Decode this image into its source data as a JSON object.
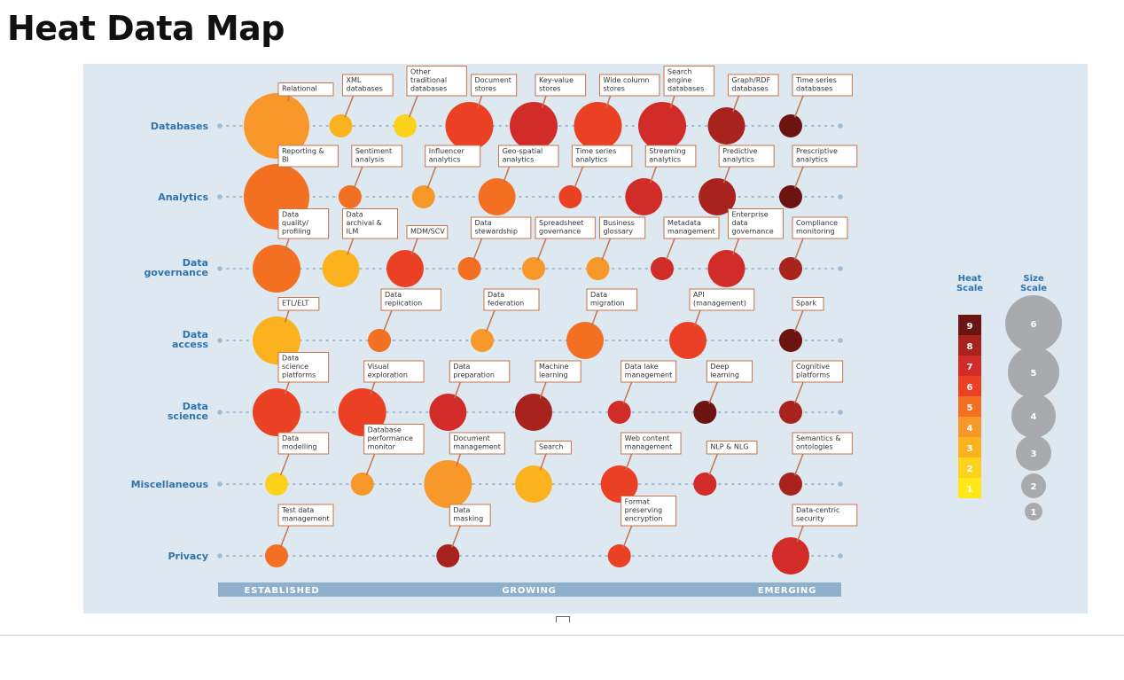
{
  "title": "Heat Data Map",
  "colors": {
    "heat": {
      "1": "#ffe816",
      "2": "#fcd21c",
      "3": "#fbb21e",
      "4": "#f8982a",
      "5": "#f36f22",
      "6": "#ea4024",
      "7": "#d22c28",
      "8": "#a8221e",
      "9": "#6b1412"
    },
    "size_bubble": "#a9aaad",
    "row_label": "#2f74ae",
    "axis_bar": "#8eb0cc",
    "dot": "#9ebcd5"
  },
  "rows": [
    {
      "label": "Databases",
      "items": [
        {
          "label": "Relational",
          "heat": 4,
          "size": 6
        },
        {
          "label": "XML databases",
          "heat": 3,
          "size": 2
        },
        {
          "label": "Other traditional databases",
          "heat": 2,
          "size": 2
        },
        {
          "label": "Document stores",
          "heat": 6,
          "size": 5
        },
        {
          "label": "Key-value stores",
          "heat": 7,
          "size": 5
        },
        {
          "label": "Wide column stores",
          "heat": 6,
          "size": 5
        },
        {
          "label": "Search engine databases",
          "heat": 7,
          "size": 5
        },
        {
          "label": "Graph/RDF databases",
          "heat": 8,
          "size": 4
        },
        {
          "label": "Time series databases",
          "heat": 9,
          "size": 2
        }
      ]
    },
    {
      "label": "Analytics",
      "items": [
        {
          "label": "Reporting & BI",
          "heat": 5,
          "size": 6
        },
        {
          "label": "Sentiment analysis",
          "heat": 5,
          "size": 2
        },
        {
          "label": "Influencer analytics",
          "heat": 4,
          "size": 2
        },
        {
          "label": "Geo-spatial analytics",
          "heat": 5,
          "size": 4
        },
        {
          "label": "Time series analytics",
          "heat": 6,
          "size": 2
        },
        {
          "label": "Streaming analytics",
          "heat": 7,
          "size": 4
        },
        {
          "label": "Predictive analytics",
          "heat": 8,
          "size": 4
        },
        {
          "label": "Prescriptive analytics",
          "heat": 9,
          "size": 2
        }
      ]
    },
    {
      "label": "Data governance",
      "items": [
        {
          "label": "Data quality/ profiling",
          "heat": 5,
          "size": 5
        },
        {
          "label": "Data archival & ILM",
          "heat": 3,
          "size": 4
        },
        {
          "label": "MDM/SCV",
          "heat": 6,
          "size": 4
        },
        {
          "label": "Data stewardship",
          "heat": 5,
          "size": 2
        },
        {
          "label": "Spreadsheet governance",
          "heat": 4,
          "size": 2
        },
        {
          "label": "Business glossary",
          "heat": 4,
          "size": 2
        },
        {
          "label": "Metadata management",
          "heat": 7,
          "size": 2
        },
        {
          "label": "Enterprise data governance",
          "heat": 7,
          "size": 4
        },
        {
          "label": "Compliance monitoring",
          "heat": 8,
          "size": 2
        }
      ]
    },
    {
      "label": "Data access",
      "items": [
        {
          "label": "ETL/ELT",
          "heat": 3,
          "size": 5
        },
        {
          "label": "Data replication",
          "heat": 5,
          "size": 2
        },
        {
          "label": "Data federation",
          "heat": 4,
          "size": 2
        },
        {
          "label": "Data migration",
          "heat": 5,
          "size": 4
        },
        {
          "label": "API (management)",
          "heat": 6,
          "size": 4
        },
        {
          "label": "Spark",
          "heat": 9,
          "size": 2
        }
      ]
    },
    {
      "label": "Data science",
      "items": [
        {
          "label": "Data science platforms",
          "heat": 6,
          "size": 5
        },
        {
          "label": "Visual exploration",
          "heat": 6,
          "size": 5
        },
        {
          "label": "Data preparation",
          "heat": 7,
          "size": 4
        },
        {
          "label": "Machine learning",
          "heat": 8,
          "size": 4
        },
        {
          "label": "Data lake management",
          "heat": 7,
          "size": 2
        },
        {
          "label": "Deep learning",
          "heat": 9,
          "size": 2
        },
        {
          "label": "Cognitive platforms",
          "heat": 8,
          "size": 2
        }
      ]
    },
    {
      "label": "Miscellaneous",
      "items": [
        {
          "label": "Data modelling",
          "heat": 2,
          "size": 2
        },
        {
          "label": "Database performance monitor",
          "heat": 4,
          "size": 2
        },
        {
          "label": "Document management",
          "heat": 4,
          "size": 5
        },
        {
          "label": "Search",
          "heat": 3,
          "size": 4
        },
        {
          "label": "Web content management",
          "heat": 6,
          "size": 4
        },
        {
          "label": "NLP & NLG",
          "heat": 7,
          "size": 2
        },
        {
          "label": "Semantics & ontologies",
          "heat": 8,
          "size": 2
        }
      ]
    },
    {
      "label": "Privacy",
      "items": [
        {
          "label": "Test data management",
          "heat": 5,
          "size": 2
        },
        {
          "label": "Data masking",
          "heat": 8,
          "size": 2
        },
        {
          "label": "Format preserving encryption",
          "heat": 6,
          "size": 2
        },
        {
          "label": "Data-centric security",
          "heat": 7,
          "size": 4
        }
      ]
    }
  ],
  "axis": {
    "established": "ESTABLISHED",
    "growing": "GROWING",
    "emerging": "EMERGING"
  },
  "legend": {
    "heat_title": "Heat Scale",
    "heat_levels": [
      "9",
      "8",
      "7",
      "6",
      "5",
      "4",
      "3",
      "2",
      "1"
    ],
    "size_title": "Size Scale",
    "size_levels": [
      "6",
      "5",
      "4",
      "3",
      "2",
      "1"
    ]
  }
}
